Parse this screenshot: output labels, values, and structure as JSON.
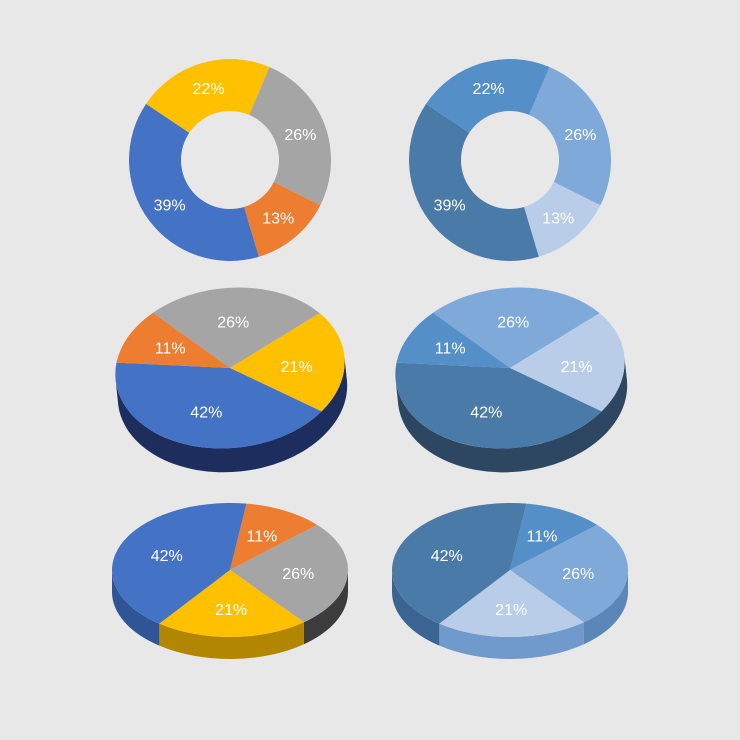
{
  "page": {
    "background": "#e8e8e8"
  },
  "chart_data": [
    {
      "type": "pie",
      "variant": "donut",
      "values": [
        26,
        13,
        39,
        22
      ],
      "labels": [
        "26%",
        "13%",
        "39%",
        "22%"
      ],
      "colors": [
        "#a5a5a5",
        "#ed7d31",
        "#4472c4",
        "#ffc000"
      ],
      "label_color": "#ffffff"
    },
    {
      "type": "pie",
      "variant": "donut",
      "values": [
        26,
        13,
        39,
        22
      ],
      "labels": [
        "26%",
        "13%",
        "39%",
        "22%"
      ],
      "colors": [
        "#7ea9d9",
        "#b9cde9",
        "#4a7aa7",
        "#5490c7"
      ],
      "label_color": "#ffffff"
    },
    {
      "type": "pie",
      "variant": "3d-ellipse-tilted",
      "values": [
        26,
        21,
        42,
        11
      ],
      "labels": [
        "26%",
        "21%",
        "42%",
        "11%"
      ],
      "colors": [
        "#a5a5a5",
        "#ffc000",
        "#4472c4",
        "#ed7d31"
      ],
      "side_color": "#1d2e5e",
      "label_color": "#ffffff"
    },
    {
      "type": "pie",
      "variant": "3d-ellipse-tilted",
      "values": [
        26,
        21,
        42,
        11
      ],
      "labels": [
        "26%",
        "21%",
        "42%",
        "11%"
      ],
      "colors": [
        "#7ea9d9",
        "#b9cde9",
        "#4a7aa7",
        "#5490c7"
      ],
      "side_color": "#2d4661",
      "label_color": "#ffffff"
    },
    {
      "type": "pie",
      "variant": "3d-ellipse",
      "values": [
        11,
        26,
        21,
        42
      ],
      "labels": [
        "11%",
        "26%",
        "21%",
        "42%"
      ],
      "colors": [
        "#ed7d31",
        "#a5a5a5",
        "#ffc000",
        "#4472c4"
      ],
      "side_colors": [
        "#3c3c3c",
        "#b38600",
        "#2f5597"
      ],
      "label_color": "#ffffff"
    },
    {
      "type": "pie",
      "variant": "3d-ellipse",
      "values": [
        11,
        26,
        21,
        42
      ],
      "labels": [
        "11%",
        "26%",
        "21%",
        "42%"
      ],
      "colors": [
        "#5490c7",
        "#7ea9d9",
        "#b9cde9",
        "#4a7aa7"
      ],
      "side_colors": [
        "#5b86b8",
        "#6f9acb",
        "#3a6592"
      ],
      "label_color": "#ffffff"
    }
  ]
}
